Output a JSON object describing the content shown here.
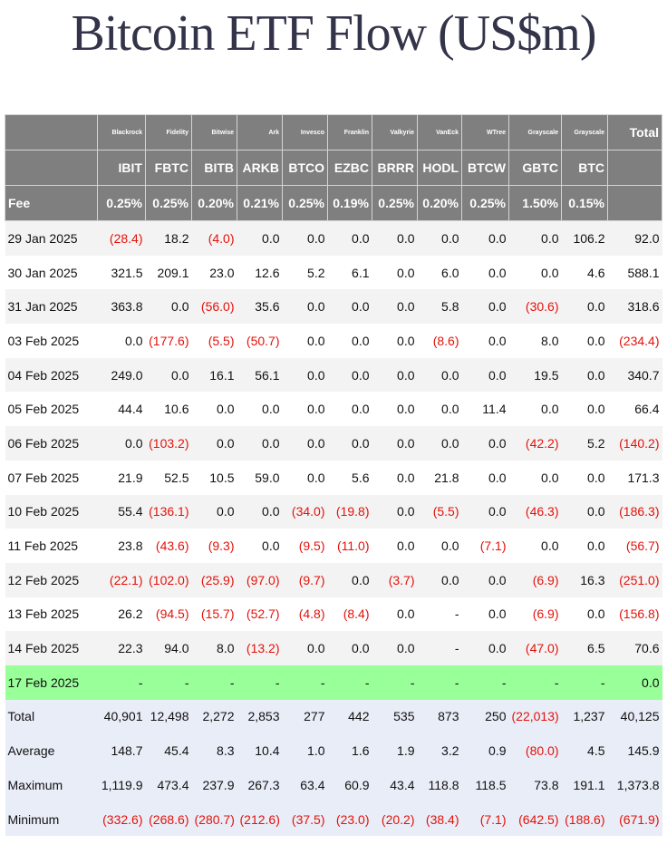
{
  "title": "Bitcoin ETF Flow (US$m)",
  "colors": {
    "header_bg": "#7f7f7f",
    "negative": "#e3120b",
    "highlight_row": "#99ff99",
    "summary_bg": "#e9edf7"
  },
  "header": {
    "providers": [
      "Blackrock",
      "Fidelity",
      "Bitwise",
      "Ark",
      "Invesco",
      "Franklin",
      "Valkyrie",
      "VanEck",
      "WTree",
      "Grayscale",
      "Grayscale"
    ],
    "total_label": "Total",
    "tickers": [
      "IBIT",
      "FBTC",
      "BITB",
      "ARKB",
      "BTCO",
      "EZBC",
      "BRRR",
      "HODL",
      "BTCW",
      "GBTC",
      "BTC"
    ],
    "fee_label": "Fee",
    "fees": [
      "0.25%",
      "0.25%",
      "0.20%",
      "0.21%",
      "0.25%",
      "0.19%",
      "0.25%",
      "0.20%",
      "0.25%",
      "1.50%",
      "0.15%"
    ]
  },
  "rows": [
    {
      "date": "29 Jan 2025",
      "values": [
        "(28.4)",
        "18.2",
        "(4.0)",
        "0.0",
        "0.0",
        "0.0",
        "0.0",
        "0.0",
        "0.0",
        "0.0",
        "106.2"
      ],
      "total": "92.0"
    },
    {
      "date": "30 Jan 2025",
      "values": [
        "321.5",
        "209.1",
        "23.0",
        "12.6",
        "5.2",
        "6.1",
        "0.0",
        "6.0",
        "0.0",
        "0.0",
        "4.6"
      ],
      "total": "588.1"
    },
    {
      "date": "31 Jan 2025",
      "values": [
        "363.8",
        "0.0",
        "(56.0)",
        "35.6",
        "0.0",
        "0.0",
        "0.0",
        "5.8",
        "0.0",
        "(30.6)",
        "0.0"
      ],
      "total": "318.6"
    },
    {
      "date": "03 Feb 2025",
      "values": [
        "0.0",
        "(177.6)",
        "(5.5)",
        "(50.7)",
        "0.0",
        "0.0",
        "0.0",
        "(8.6)",
        "0.0",
        "8.0",
        "0.0"
      ],
      "total": "(234.4)"
    },
    {
      "date": "04 Feb 2025",
      "values": [
        "249.0",
        "0.0",
        "16.1",
        "56.1",
        "0.0",
        "0.0",
        "0.0",
        "0.0",
        "0.0",
        "19.5",
        "0.0"
      ],
      "total": "340.7"
    },
    {
      "date": "05 Feb 2025",
      "values": [
        "44.4",
        "10.6",
        "0.0",
        "0.0",
        "0.0",
        "0.0",
        "0.0",
        "0.0",
        "11.4",
        "0.0",
        "0.0"
      ],
      "total": "66.4"
    },
    {
      "date": "06 Feb 2025",
      "values": [
        "0.0",
        "(103.2)",
        "0.0",
        "0.0",
        "0.0",
        "0.0",
        "0.0",
        "0.0",
        "0.0",
        "(42.2)",
        "5.2"
      ],
      "total": "(140.2)"
    },
    {
      "date": "07 Feb 2025",
      "values": [
        "21.9",
        "52.5",
        "10.5",
        "59.0",
        "0.0",
        "5.6",
        "0.0",
        "21.8",
        "0.0",
        "0.0",
        "0.0"
      ],
      "total": "171.3"
    },
    {
      "date": "10 Feb 2025",
      "values": [
        "55.4",
        "(136.1)",
        "0.0",
        "0.0",
        "(34.0)",
        "(19.8)",
        "0.0",
        "(5.5)",
        "0.0",
        "(46.3)",
        "0.0"
      ],
      "total": "(186.3)"
    },
    {
      "date": "11 Feb 2025",
      "values": [
        "23.8",
        "(43.6)",
        "(9.3)",
        "0.0",
        "(9.5)",
        "(11.0)",
        "0.0",
        "0.0",
        "(7.1)",
        "0.0",
        "0.0"
      ],
      "total": "(56.7)"
    },
    {
      "date": "12 Feb 2025",
      "values": [
        "(22.1)",
        "(102.0)",
        "(25.9)",
        "(97.0)",
        "(9.7)",
        "0.0",
        "(3.7)",
        "0.0",
        "0.0",
        "(6.9)",
        "16.3"
      ],
      "total": "(251.0)"
    },
    {
      "date": "13 Feb 2025",
      "values": [
        "26.2",
        "(94.5)",
        "(15.7)",
        "(52.7)",
        "(4.8)",
        "(8.4)",
        "0.0",
        "-",
        "0.0",
        "(6.9)",
        "0.0"
      ],
      "total": "(156.8)"
    },
    {
      "date": "14 Feb 2025",
      "values": [
        "22.3",
        "94.0",
        "8.0",
        "(13.2)",
        "0.0",
        "0.0",
        "0.0",
        "-",
        "0.0",
        "(47.0)",
        "6.5"
      ],
      "total": "70.6"
    },
    {
      "date": "17 Feb 2025",
      "values": [
        "-",
        "-",
        "-",
        "-",
        "-",
        "-",
        "-",
        "-",
        "-",
        "-",
        "-"
      ],
      "total": "0.0",
      "highlight": true
    }
  ],
  "summary": [
    {
      "label": "Total",
      "values": [
        "40,901",
        "12,498",
        "2,272",
        "2,853",
        "277",
        "442",
        "535",
        "873",
        "250",
        "(22,013)",
        "1,237"
      ],
      "total": "40,125"
    },
    {
      "label": "Average",
      "values": [
        "148.7",
        "45.4",
        "8.3",
        "10.4",
        "1.0",
        "1.6",
        "1.9",
        "3.2",
        "0.9",
        "(80.0)",
        "4.5"
      ],
      "total": "145.9"
    },
    {
      "label": "Maximum",
      "values": [
        "1,119.9",
        "473.4",
        "237.9",
        "267.3",
        "63.4",
        "60.9",
        "43.4",
        "118.8",
        "118.5",
        "73.8",
        "191.1"
      ],
      "total": "1,373.8"
    },
    {
      "label": "Minimum",
      "values": [
        "(332.6)",
        "(268.6)",
        "(280.7)",
        "(212.6)",
        "(37.5)",
        "(23.0)",
        "(20.2)",
        "(38.4)",
        "(7.1)",
        "(642.5)",
        "(188.6)"
      ],
      "total": "(671.9)"
    }
  ]
}
